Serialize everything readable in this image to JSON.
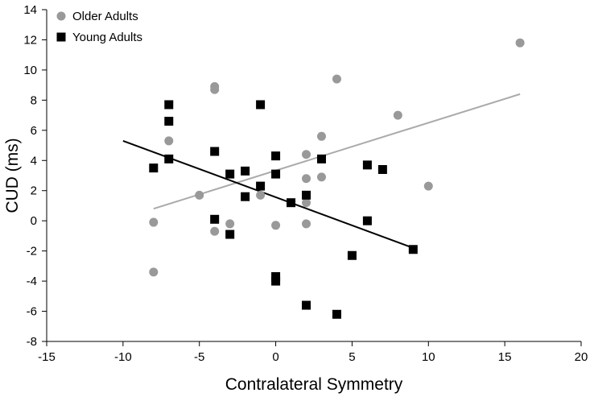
{
  "chart_data": {
    "type": "scatter",
    "title": "",
    "xlabel": "Contralateral Symmetry",
    "ylabel": "CUD (ms)",
    "xlim": [
      -15,
      20
    ],
    "ylim": [
      -8,
      14
    ],
    "x_ticks": [
      -15,
      -10,
      -5,
      0,
      5,
      10,
      15,
      20
    ],
    "y_ticks": [
      -8,
      -6,
      -4,
      -2,
      0,
      2,
      4,
      6,
      8,
      10,
      12,
      14
    ],
    "grid": false,
    "legend_position": "top-left",
    "series": [
      {
        "name": "Older Adults",
        "marker": "circle",
        "color": "#999999",
        "points": [
          [
            -8,
            -0.1
          ],
          [
            -8,
            -3.4
          ],
          [
            -7,
            5.3
          ],
          [
            -5,
            1.7
          ],
          [
            -4,
            8.9
          ],
          [
            -4,
            8.7
          ],
          [
            -4,
            -0.7
          ],
          [
            -3,
            -0.2
          ],
          [
            -1,
            1.7
          ],
          [
            0,
            -0.3
          ],
          [
            2,
            4.4
          ],
          [
            2,
            2.8
          ],
          [
            2,
            1.2
          ],
          [
            2,
            -0.2
          ],
          [
            3,
            5.6
          ],
          [
            3,
            2.9
          ],
          [
            4,
            9.4
          ],
          [
            8,
            7.0
          ],
          [
            10,
            2.3
          ],
          [
            16,
            11.8
          ]
        ],
        "trend": {
          "x": [
            -8,
            16
          ],
          "y": [
            0.8,
            8.4
          ]
        }
      },
      {
        "name": "Young Adults",
        "marker": "square",
        "color": "#000000",
        "points": [
          [
            -8,
            3.5
          ],
          [
            -7,
            7.7
          ],
          [
            -7,
            6.6
          ],
          [
            -7,
            4.1
          ],
          [
            -4,
            4.6
          ],
          [
            -4,
            0.1
          ],
          [
            -3,
            3.1
          ],
          [
            -3,
            -0.9
          ],
          [
            -2,
            3.3
          ],
          [
            -2,
            1.6
          ],
          [
            -1,
            7.7
          ],
          [
            -1,
            2.3
          ],
          [
            0,
            4.3
          ],
          [
            0,
            3.1
          ],
          [
            0,
            -3.7
          ],
          [
            0,
            -4.0
          ],
          [
            1,
            1.2
          ],
          [
            2,
            1.7
          ],
          [
            2,
            -5.6
          ],
          [
            3,
            4.1
          ],
          [
            4,
            -6.2
          ],
          [
            5,
            -2.3
          ],
          [
            6,
            3.7
          ],
          [
            6,
            0.0
          ],
          [
            7,
            3.4
          ],
          [
            9,
            -1.9
          ]
        ],
        "trend": {
          "x": [
            -10,
            9
          ],
          "y": [
            5.3,
            -1.8
          ]
        }
      }
    ]
  }
}
